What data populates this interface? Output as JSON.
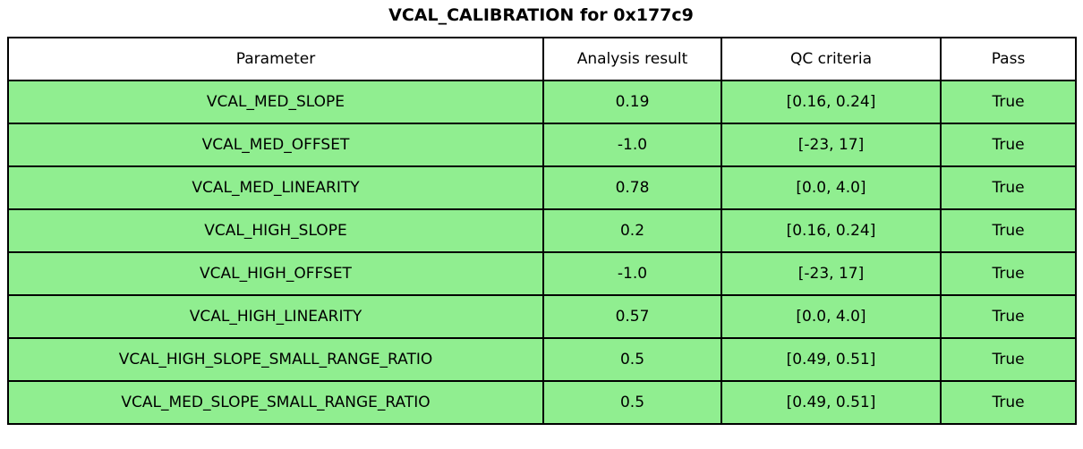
{
  "title": "VCAL_CALIBRATION for 0x177c9",
  "colors": {
    "row_fill": "#90EE90",
    "header_fill": "#FFFFFF",
    "border": "#000000",
    "text": "#000000"
  },
  "table": {
    "headers": {
      "parameter": "Parameter",
      "result": "Analysis result",
      "criteria": "QC criteria",
      "pass": "Pass"
    },
    "rows": [
      {
        "parameter": "VCAL_MED_SLOPE",
        "result": "0.19",
        "criteria": "[0.16, 0.24]",
        "pass": "True"
      },
      {
        "parameter": "VCAL_MED_OFFSET",
        "result": "-1.0",
        "criteria": "[-23, 17]",
        "pass": "True"
      },
      {
        "parameter": "VCAL_MED_LINEARITY",
        "result": "0.78",
        "criteria": "[0.0, 4.0]",
        "pass": "True"
      },
      {
        "parameter": "VCAL_HIGH_SLOPE",
        "result": "0.2",
        "criteria": "[0.16, 0.24]",
        "pass": "True"
      },
      {
        "parameter": "VCAL_HIGH_OFFSET",
        "result": "-1.0",
        "criteria": "[-23, 17]",
        "pass": "True"
      },
      {
        "parameter": "VCAL_HIGH_LINEARITY",
        "result": "0.57",
        "criteria": "[0.0, 4.0]",
        "pass": "True"
      },
      {
        "parameter": "VCAL_HIGH_SLOPE_SMALL_RANGE_RATIO",
        "result": "0.5",
        "criteria": "[0.49, 0.51]",
        "pass": "True"
      },
      {
        "parameter": "VCAL_MED_SLOPE_SMALL_RANGE_RATIO",
        "result": "0.5",
        "criteria": "[0.49, 0.51]",
        "pass": "True"
      }
    ]
  },
  "chart_data": {
    "type": "table",
    "title": "VCAL_CALIBRATION for 0x177c9",
    "columns": [
      "Parameter",
      "Analysis result",
      "QC criteria",
      "Pass"
    ],
    "rows": [
      [
        "VCAL_MED_SLOPE",
        0.19,
        "[0.16, 0.24]",
        true
      ],
      [
        "VCAL_MED_OFFSET",
        -1.0,
        "[-23, 17]",
        true
      ],
      [
        "VCAL_MED_LINEARITY",
        0.78,
        "[0.0, 4.0]",
        true
      ],
      [
        "VCAL_HIGH_SLOPE",
        0.2,
        "[0.16, 0.24]",
        true
      ],
      [
        "VCAL_HIGH_OFFSET",
        -1.0,
        "[-23, 17]",
        true
      ],
      [
        "VCAL_HIGH_LINEARITY",
        0.57,
        "[0.0, 4.0]",
        true
      ],
      [
        "VCAL_HIGH_SLOPE_SMALL_RANGE_RATIO",
        0.5,
        "[0.49, 0.51]",
        true
      ],
      [
        "VCAL_MED_SLOPE_SMALL_RANGE_RATIO",
        0.5,
        "[0.49, 0.51]",
        true
      ]
    ],
    "row_fill_color": "#90EE90",
    "all_rows_pass": true
  }
}
